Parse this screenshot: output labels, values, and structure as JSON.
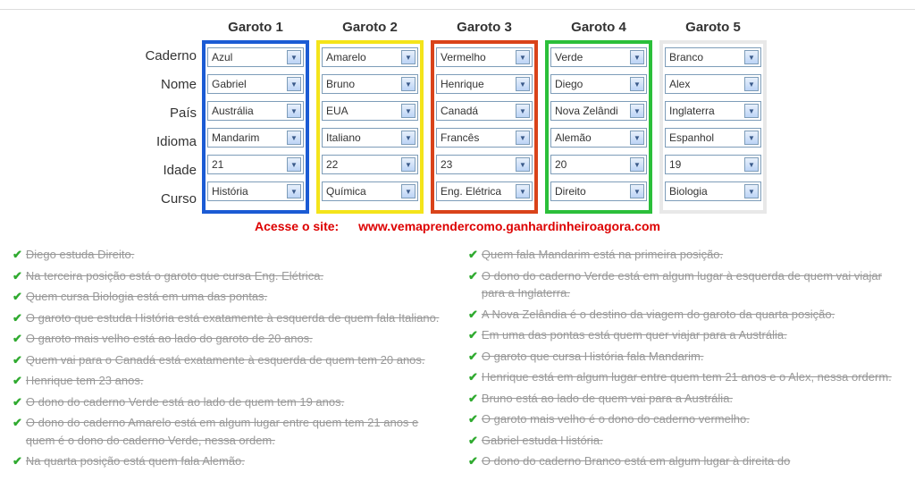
{
  "row_labels": [
    "Caderno",
    "Nome",
    "País",
    "Idioma",
    "Idade",
    "Curso"
  ],
  "columns": [
    {
      "header": "Garoto 1",
      "border_color": "#1b5bd4",
      "values": [
        "Azul",
        "Gabriel",
        "Austrália",
        "Mandarim",
        "21",
        "História"
      ]
    },
    {
      "header": "Garoto 2",
      "border_color": "#f4e41a",
      "values": [
        "Amarelo",
        "Bruno",
        "EUA",
        "Italiano",
        "22",
        "Química"
      ]
    },
    {
      "header": "Garoto 3",
      "border_color": "#d9431a",
      "values": [
        "Vermelho",
        "Henrique",
        "Canadá",
        "Francês",
        "23",
        "Eng. Elétrica"
      ]
    },
    {
      "header": "Garoto 4",
      "border_color": "#2bbf3a",
      "values": [
        "Verde",
        "Diego",
        "Nova Zelândi",
        "Alemão",
        "20",
        "Direito"
      ]
    },
    {
      "header": "Garoto 5",
      "border_color": "#ffffff",
      "values": [
        "Branco",
        "Alex",
        "Inglaterra",
        "Espanhol",
        "19",
        "Biologia"
      ]
    }
  ],
  "site": {
    "label": "Acesse o site:",
    "url": "www.vemaprendercomo.ganhardinheiroagora.com"
  },
  "clues_left": [
    "Diego estuda Direito.",
    "Na terceira posição está o garoto que cursa Eng. Elétrica.",
    "Quem cursa Biologia está em uma das pontas.",
    "O garoto que estuda História está exatamente à esquerda de quem fala Italiano.",
    "O garoto mais velho está ao lado do garoto de 20 anos.",
    "Quem vai para o Canadá está exatamente à esquerda de quem tem 20 anos.",
    "Henrique tem 23 anos.",
    "O dono do caderno Verde está ao lado de quem tem 19 anos.",
    "O dono do caderno Amarelo está em algum lugar entre quem tem 21 anos e quem é o dono do caderno Verde, nessa ordem.",
    "Na quarta posição está quem fala Alemão."
  ],
  "clues_right": [
    "Quem fala Mandarim está na primeira posição.",
    "O dono do caderno Verde está em algum lugar à esquerda de quem vai viajar para a Inglaterra.",
    "A Nova Zelândia é o destino da viagem do garoto da quarta posição.",
    "Em uma das pontas está quem quer viajar para a Austrália.",
    "O garoto que cursa História fala Mandarim.",
    "Henrique está em algum lugar entre quem tem 21 anos e o Alex, nessa orderm.",
    "Bruno está ao lado de quem vai para a Austrália.",
    "O garoto mais velho é o dono do caderno vermelho.",
    "Gabriel estuda História.",
    "O dono do caderno Branco está em algum lugar à direita do"
  ]
}
